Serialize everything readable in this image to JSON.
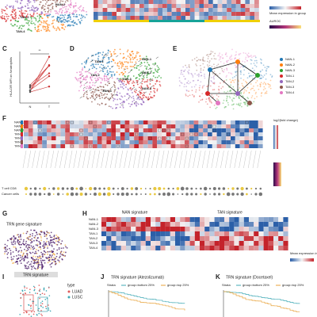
{
  "panels": {
    "top": {
      "legend_title": "Mean expression in group",
      "auroc": "AUROC",
      "umap_labels": [
        "NAN-2",
        "TAN-2",
        "TAN-4"
      ]
    },
    "c": {
      "label": "C",
      "ylabel": "HLA-DR MFI on Neutrophils",
      "sig": "**",
      "groups": [
        "N",
        "T"
      ]
    },
    "d": {
      "label": "D",
      "clusters": [
        "NAN-1",
        "TAN-1",
        "TAN-2",
        "NAN-2",
        "TAN-3",
        "NAN-3",
        "TAN-4"
      ]
    },
    "e": {
      "label": "E",
      "legend": [
        "NAN-1",
        "NAN-2",
        "NAN-3",
        "TAN-1",
        "TAN-2",
        "TAN-3",
        "TAN-4"
      ]
    },
    "f": {
      "label": "F",
      "rows": [
        "NAN-1",
        "NAN-2",
        "NAN-3",
        "TAN-1",
        "TAN-2",
        "TAN-3",
        "TAN-4"
      ],
      "legend_title": "log2(fold change)",
      "dot_rows": [
        "T cell CD8",
        "Cancer cells"
      ]
    },
    "g": {
      "label": "G",
      "title": "TRN gene signature"
    },
    "h": {
      "label": "H",
      "nan": "NAN signature",
      "tan": "TAN signature",
      "rows": [
        "NAN-1",
        "NAN-2",
        "NAN-3",
        "TAN-1",
        "TAN-2",
        "TAN-3",
        "TAN-4"
      ],
      "legend_title": "Mean expression in group"
    },
    "i": {
      "label": "I",
      "title": "TRN signature",
      "type": "type",
      "types": [
        "LUAD",
        "LUSC"
      ]
    },
    "j": {
      "label": "J",
      "title": "TRN signature (Atezolizumab)",
      "strata": "Strata",
      "groups": [
        "group=bottom 25%",
        "group=top 25%"
      ]
    },
    "k": {
      "label": "K",
      "title": "TRN signature (Docetaxel)",
      "strata": "Strata",
      "groups": [
        "group=bottom 25%",
        "group=top 25%"
      ]
    }
  }
}
